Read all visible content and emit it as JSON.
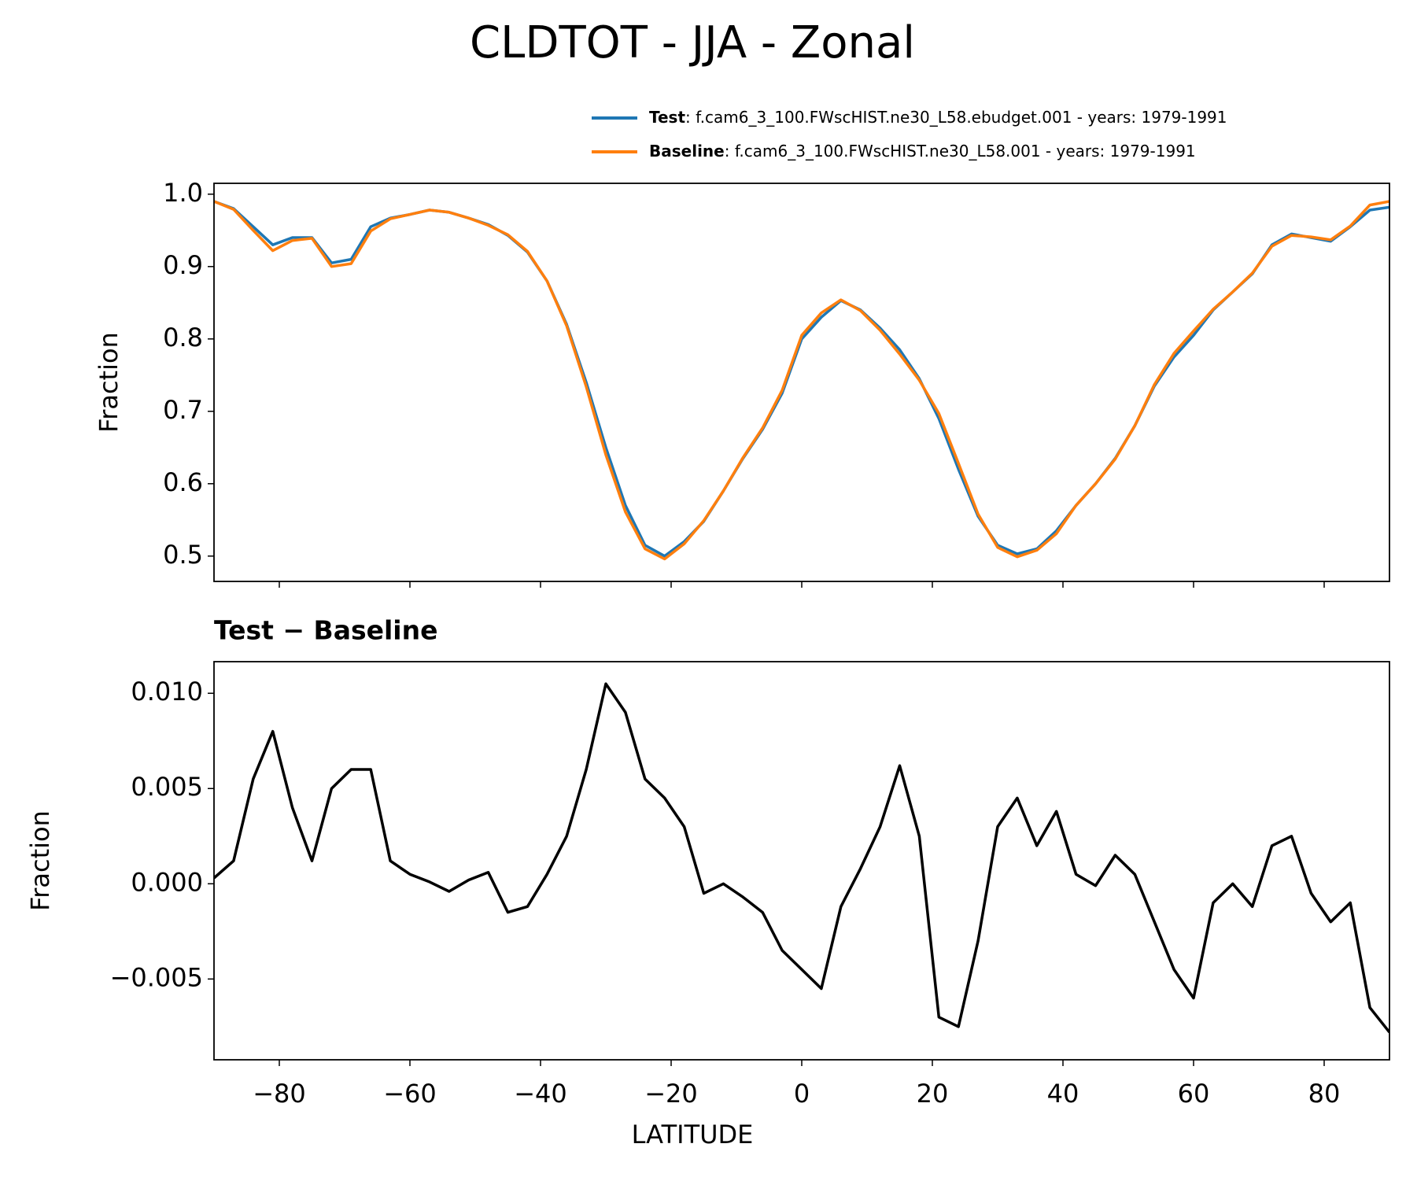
{
  "chart_data": [
    {
      "type": "line",
      "title": "CLDTOT - JJA - Zonal",
      "ylabel": "Fraction",
      "x": [
        -90,
        -87,
        -84,
        -81,
        -78,
        -75,
        -72,
        -69,
        -66,
        -63,
        -60,
        -57,
        -54,
        -51,
        -48,
        -45,
        -42,
        -39,
        -36,
        -33,
        -30,
        -27,
        -24,
        -21,
        -18,
        -15,
        -12,
        -9,
        -6,
        -3,
        0,
        3,
        6,
        9,
        12,
        15,
        18,
        21,
        24,
        27,
        30,
        33,
        36,
        39,
        42,
        45,
        48,
        51,
        54,
        57,
        60,
        63,
        66,
        69,
        72,
        75,
        78,
        81,
        84,
        87,
        90
      ],
      "series": [
        {
          "name": "Test",
          "legend_text": ": f.cam6_3_100.FWscHIST.ne30_L58.ebudget.001 - years: 1979-1991",
          "color": "#1f77b4",
          "values": [
            0.99,
            0.98,
            0.955,
            0.93,
            0.94,
            0.94,
            0.905,
            0.91,
            0.955,
            0.967,
            0.972,
            0.978,
            0.975,
            0.967,
            0.958,
            0.943,
            0.92,
            0.88,
            0.82,
            0.74,
            0.65,
            0.57,
            0.515,
            0.5,
            0.52,
            0.548,
            0.59,
            0.635,
            0.675,
            0.725,
            0.8,
            0.83,
            0.853,
            0.84,
            0.815,
            0.785,
            0.745,
            0.69,
            0.62,
            0.555,
            0.515,
            0.503,
            0.51,
            0.535,
            0.57,
            0.6,
            0.635,
            0.68,
            0.735,
            0.775,
            0.805,
            0.84,
            0.865,
            0.89,
            0.93,
            0.945,
            0.94,
            0.935,
            0.955,
            0.978,
            0.982
          ]
        },
        {
          "name": "Baseline",
          "legend_text": ": f.cam6_3_100.FWscHIST.ne30_L58.001 - years: 1979-1991",
          "color": "#ff7f0e",
          "values": [
            0.99,
            0.979,
            0.95,
            0.922,
            0.936,
            0.939,
            0.9,
            0.904,
            0.949,
            0.966,
            0.972,
            0.978,
            0.975,
            0.967,
            0.957,
            0.944,
            0.921,
            0.88,
            0.818,
            0.734,
            0.64,
            0.561,
            0.51,
            0.496,
            0.517,
            0.549,
            0.59,
            0.636,
            0.677,
            0.729,
            0.805,
            0.836,
            0.854,
            0.839,
            0.812,
            0.779,
            0.743,
            0.697,
            0.628,
            0.558,
            0.512,
            0.499,
            0.508,
            0.531,
            0.57,
            0.6,
            0.634,
            0.68,
            0.737,
            0.78,
            0.811,
            0.841,
            0.865,
            0.891,
            0.928,
            0.943,
            0.941,
            0.937,
            0.956,
            0.985,
            0.99
          ]
        }
      ],
      "xlim": [
        -90,
        90
      ],
      "xticks": [
        -80,
        -60,
        -40,
        -20,
        0,
        20,
        40,
        60,
        80
      ],
      "ylim": [
        0.465,
        1.015
      ],
      "yticks": [
        0.5,
        0.6,
        0.7,
        0.8,
        0.9,
        {
          "value": 1.0,
          "label": "1.0"
        }
      ]
    },
    {
      "type": "line",
      "title": "Test − Baseline",
      "ylabel": "Fraction",
      "xlabel": "LATITUDE",
      "color": "#000000",
      "x": [
        -90,
        -87,
        -84,
        -81,
        -78,
        -75,
        -72,
        -69,
        -66,
        -63,
        -60,
        -57,
        -54,
        -51,
        -48,
        -45,
        -42,
        -39,
        -36,
        -33,
        -30,
        -27,
        -24,
        -21,
        -18,
        -15,
        -12,
        -9,
        -6,
        -3,
        0,
        3,
        6,
        9,
        12,
        15,
        18,
        21,
        24,
        27,
        30,
        33,
        36,
        39,
        42,
        45,
        48,
        51,
        54,
        57,
        60,
        63,
        66,
        69,
        72,
        75,
        78,
        81,
        84,
        87,
        90
      ],
      "values": [
        0.0003,
        0.0012,
        0.0055,
        0.008,
        0.004,
        0.0012,
        0.005,
        0.006,
        0.006,
        0.0012,
        0.0005,
        0.0001,
        -0.0004,
        0.0002,
        0.0006,
        -0.0015,
        -0.0012,
        0.0005,
        0.0025,
        0.006,
        0.0105,
        0.009,
        0.0055,
        0.0045,
        0.003,
        -0.0005,
        0.0,
        -0.0007,
        -0.0015,
        -0.0035,
        -0.0045,
        -0.0055,
        -0.0012,
        0.0008,
        0.003,
        0.0062,
        0.0025,
        -0.007,
        -0.0075,
        -0.003,
        0.003,
        0.0045,
        0.002,
        0.0038,
        0.0005,
        -0.0001,
        0.0015,
        0.0005,
        -0.002,
        -0.0045,
        -0.006,
        -0.001,
        0.0,
        -0.0012,
        0.002,
        0.0025,
        -0.0005,
        -0.002,
        -0.001,
        -0.0065,
        -0.0078
      ],
      "xlim": [
        -90,
        90
      ],
      "xticks": [
        {
          "value": -80,
          "label": "−80"
        },
        {
          "value": -60,
          "label": "−60"
        },
        {
          "value": -40,
          "label": "−40"
        },
        {
          "value": -20,
          "label": "−20"
        },
        0,
        20,
        40,
        60,
        80
      ],
      "ylim": [
        -0.00924,
        0.01166
      ],
      "yticks": [
        {
          "value": -0.005,
          "label": "−0.005"
        },
        {
          "value": 0,
          "label": "0.000"
        },
        {
          "value": 0.005,
          "label": "0.005"
        },
        {
          "value": 0.01,
          "label": "0.010"
        }
      ]
    }
  ]
}
